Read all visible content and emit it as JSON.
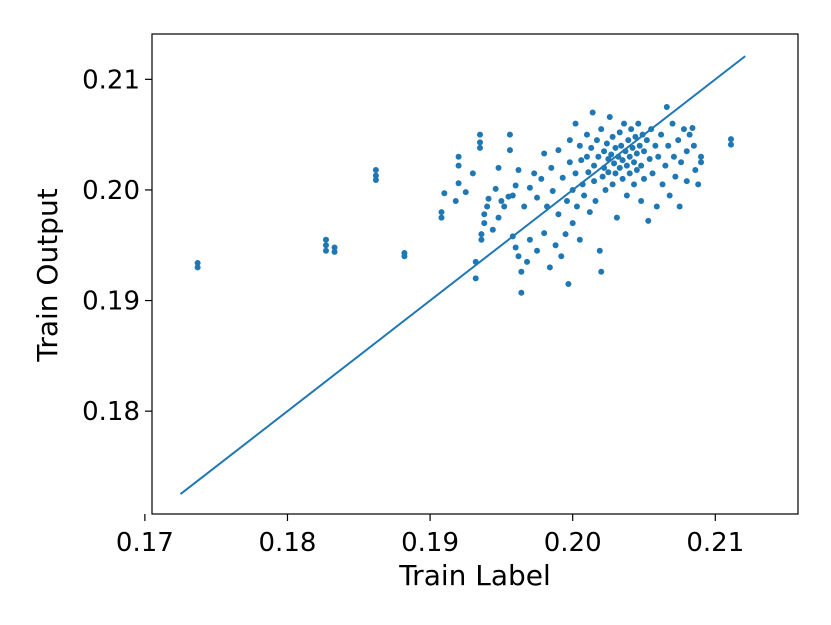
{
  "chart_data": {
    "type": "scatter",
    "xlabel": "Train Label",
    "ylabel": "Train Output",
    "xlim": [
      0.1705,
      0.2158
    ],
    "ylim": [
      0.1707,
      0.2141
    ],
    "xticks": [
      "0.17",
      "0.18",
      "0.19",
      "0.20",
      "0.21"
    ],
    "xtick_values": [
      0.17,
      0.18,
      0.19,
      0.2,
      0.21
    ],
    "yticks": [
      "0.18",
      "0.19",
      "0.20",
      "0.21"
    ],
    "ytick_values": [
      0.18,
      0.19,
      0.2,
      0.21
    ],
    "grid": false,
    "colors": {
      "series": "#1f77b4"
    },
    "reference_line": {
      "x": [
        0.1725,
        0.2121
      ],
      "y": [
        0.1725,
        0.2121
      ]
    },
    "points": [
      [
        0.1737,
        0.1934
      ],
      [
        0.1737,
        0.193
      ],
      [
        0.1827,
        0.1955
      ],
      [
        0.1827,
        0.195
      ],
      [
        0.1827,
        0.1945
      ],
      [
        0.1833,
        0.1948
      ],
      [
        0.1833,
        0.1944
      ],
      [
        0.1862,
        0.2018
      ],
      [
        0.1862,
        0.2013
      ],
      [
        0.1862,
        0.2009
      ],
      [
        0.1882,
        0.1943
      ],
      [
        0.1882,
        0.194
      ],
      [
        0.1908,
        0.1975
      ],
      [
        0.1908,
        0.198
      ],
      [
        0.191,
        0.1997
      ],
      [
        0.192,
        0.203
      ],
      [
        0.192,
        0.2022
      ],
      [
        0.192,
        0.2006
      ],
      [
        0.1918,
        0.199
      ],
      [
        0.1925,
        0.1998
      ],
      [
        0.193,
        0.2015
      ],
      [
        0.1932,
        0.1935
      ],
      [
        0.1932,
        0.192
      ],
      [
        0.1936,
        0.1955
      ],
      [
        0.1936,
        0.196
      ],
      [
        0.1935,
        0.205
      ],
      [
        0.1935,
        0.2043
      ],
      [
        0.1935,
        0.2038
      ],
      [
        0.1938,
        0.197
      ],
      [
        0.1938,
        0.1978
      ],
      [
        0.194,
        0.1985
      ],
      [
        0.1941,
        0.1992
      ],
      [
        0.1944,
        0.1964
      ],
      [
        0.1946,
        0.2001
      ],
      [
        0.1948,
        0.202
      ],
      [
        0.1948,
        0.1975
      ],
      [
        0.195,
        0.199
      ],
      [
        0.1952,
        0.1985
      ],
      [
        0.1955,
        0.1994
      ],
      [
        0.1956,
        0.205
      ],
      [
        0.1956,
        0.2036
      ],
      [
        0.1958,
        0.1958
      ],
      [
        0.1958,
        0.1995
      ],
      [
        0.196,
        0.1948
      ],
      [
        0.196,
        0.2004
      ],
      [
        0.1962,
        0.194
      ],
      [
        0.1962,
        0.2018
      ],
      [
        0.1964,
        0.1926
      ],
      [
        0.1964,
        0.1907
      ],
      [
        0.1966,
        0.1985
      ],
      [
        0.1968,
        0.1935
      ],
      [
        0.197,
        0.1955
      ],
      [
        0.197,
        0.2002
      ],
      [
        0.1973,
        0.2015
      ],
      [
        0.1975,
        0.1993
      ],
      [
        0.1975,
        0.1945
      ],
      [
        0.1978,
        0.201
      ],
      [
        0.198,
        0.2033
      ],
      [
        0.198,
        0.1961
      ],
      [
        0.1982,
        0.1985
      ],
      [
        0.1984,
        0.193
      ],
      [
        0.1985,
        0.202
      ],
      [
        0.1986,
        0.1999
      ],
      [
        0.1988,
        0.195
      ],
      [
        0.199,
        0.2036
      ],
      [
        0.199,
        0.1978
      ],
      [
        0.1992,
        0.194
      ],
      [
        0.1993,
        0.2011
      ],
      [
        0.1995,
        0.196
      ],
      [
        0.1996,
        0.199
      ],
      [
        0.1997,
        0.1915
      ],
      [
        0.1998,
        0.2045
      ],
      [
        0.1998,
        0.2025
      ],
      [
        0.2,
        0.2
      ],
      [
        0.2,
        0.197
      ],
      [
        0.2002,
        0.206
      ],
      [
        0.2002,
        0.2015
      ],
      [
        0.2003,
        0.1985
      ],
      [
        0.2005,
        0.204
      ],
      [
        0.2005,
        0.1955
      ],
      [
        0.2006,
        0.2027
      ],
      [
        0.2007,
        0.2005
      ],
      [
        0.2008,
        0.1995
      ],
      [
        0.201,
        0.205
      ],
      [
        0.201,
        0.203
      ],
      [
        0.2011,
        0.2016
      ],
      [
        0.2012,
        0.198
      ],
      [
        0.2013,
        0.2038
      ],
      [
        0.2014,
        0.207
      ],
      [
        0.2015,
        0.2022
      ],
      [
        0.2015,
        0.2008
      ],
      [
        0.2016,
        0.199
      ],
      [
        0.2017,
        0.2045
      ],
      [
        0.2018,
        0.203
      ],
      [
        0.2019,
        0.1945
      ],
      [
        0.202,
        0.1926
      ],
      [
        0.202,
        0.2055
      ],
      [
        0.2021,
        0.2012
      ],
      [
        0.2022,
        0.2035
      ],
      [
        0.2022,
        0.202
      ],
      [
        0.2023,
        0.2
      ],
      [
        0.2024,
        0.2042
      ],
      [
        0.2025,
        0.2028
      ],
      [
        0.2025,
        0.2016
      ],
      [
        0.2026,
        0.2066
      ],
      [
        0.2027,
        0.2032
      ],
      [
        0.2028,
        0.2005
      ],
      [
        0.2028,
        0.2048
      ],
      [
        0.2029,
        0.2024
      ],
      [
        0.203,
        0.2038
      ],
      [
        0.203,
        0.2015
      ],
      [
        0.2031,
        0.1975
      ],
      [
        0.2032,
        0.203
      ],
      [
        0.2033,
        0.2052
      ],
      [
        0.2033,
        0.202
      ],
      [
        0.2034,
        0.204
      ],
      [
        0.2035,
        0.2027
      ],
      [
        0.2035,
        0.201
      ],
      [
        0.2036,
        0.206
      ],
      [
        0.2037,
        0.2035
      ],
      [
        0.2038,
        0.2022
      ],
      [
        0.2038,
        0.1995
      ],
      [
        0.2039,
        0.2045
      ],
      [
        0.204,
        0.203
      ],
      [
        0.204,
        0.2015
      ],
      [
        0.2041,
        0.2055
      ],
      [
        0.2042,
        0.2038
      ],
      [
        0.2043,
        0.2025
      ],
      [
        0.2043,
        0.2005
      ],
      [
        0.2044,
        0.2048
      ],
      [
        0.2045,
        0.2033
      ],
      [
        0.2045,
        0.2018
      ],
      [
        0.2046,
        0.206
      ],
      [
        0.2047,
        0.204
      ],
      [
        0.2048,
        0.2022
      ],
      [
        0.2048,
        0.199
      ],
      [
        0.2049,
        0.205
      ],
      [
        0.205,
        0.2035
      ],
      [
        0.205,
        0.201
      ],
      [
        0.2052,
        0.2045
      ],
      [
        0.2053,
        0.1972
      ],
      [
        0.2054,
        0.2028
      ],
      [
        0.2055,
        0.2055
      ],
      [
        0.2056,
        0.2015
      ],
      [
        0.2058,
        0.204
      ],
      [
        0.2059,
        0.1985
      ],
      [
        0.206,
        0.203
      ],
      [
        0.2062,
        0.205
      ],
      [
        0.2063,
        0.2005
      ],
      [
        0.2065,
        0.2022
      ],
      [
        0.2066,
        0.2075
      ],
      [
        0.2067,
        0.204
      ],
      [
        0.2068,
        0.1995
      ],
      [
        0.207,
        0.206
      ],
      [
        0.2071,
        0.203
      ],
      [
        0.2072,
        0.2012
      ],
      [
        0.2074,
        0.2045
      ],
      [
        0.2075,
        0.1985
      ],
      [
        0.2076,
        0.2025
      ],
      [
        0.2078,
        0.2055
      ],
      [
        0.208,
        0.2035
      ],
      [
        0.208,
        0.2008
      ],
      [
        0.2082,
        0.205
      ],
      [
        0.2084,
        0.2056
      ],
      [
        0.2085,
        0.204
      ],
      [
        0.2086,
        0.2018
      ],
      [
        0.2088,
        0.2005
      ],
      [
        0.209,
        0.203
      ],
      [
        0.209,
        0.2025
      ],
      [
        0.2111,
        0.2046
      ],
      [
        0.2111,
        0.2041
      ]
    ]
  }
}
